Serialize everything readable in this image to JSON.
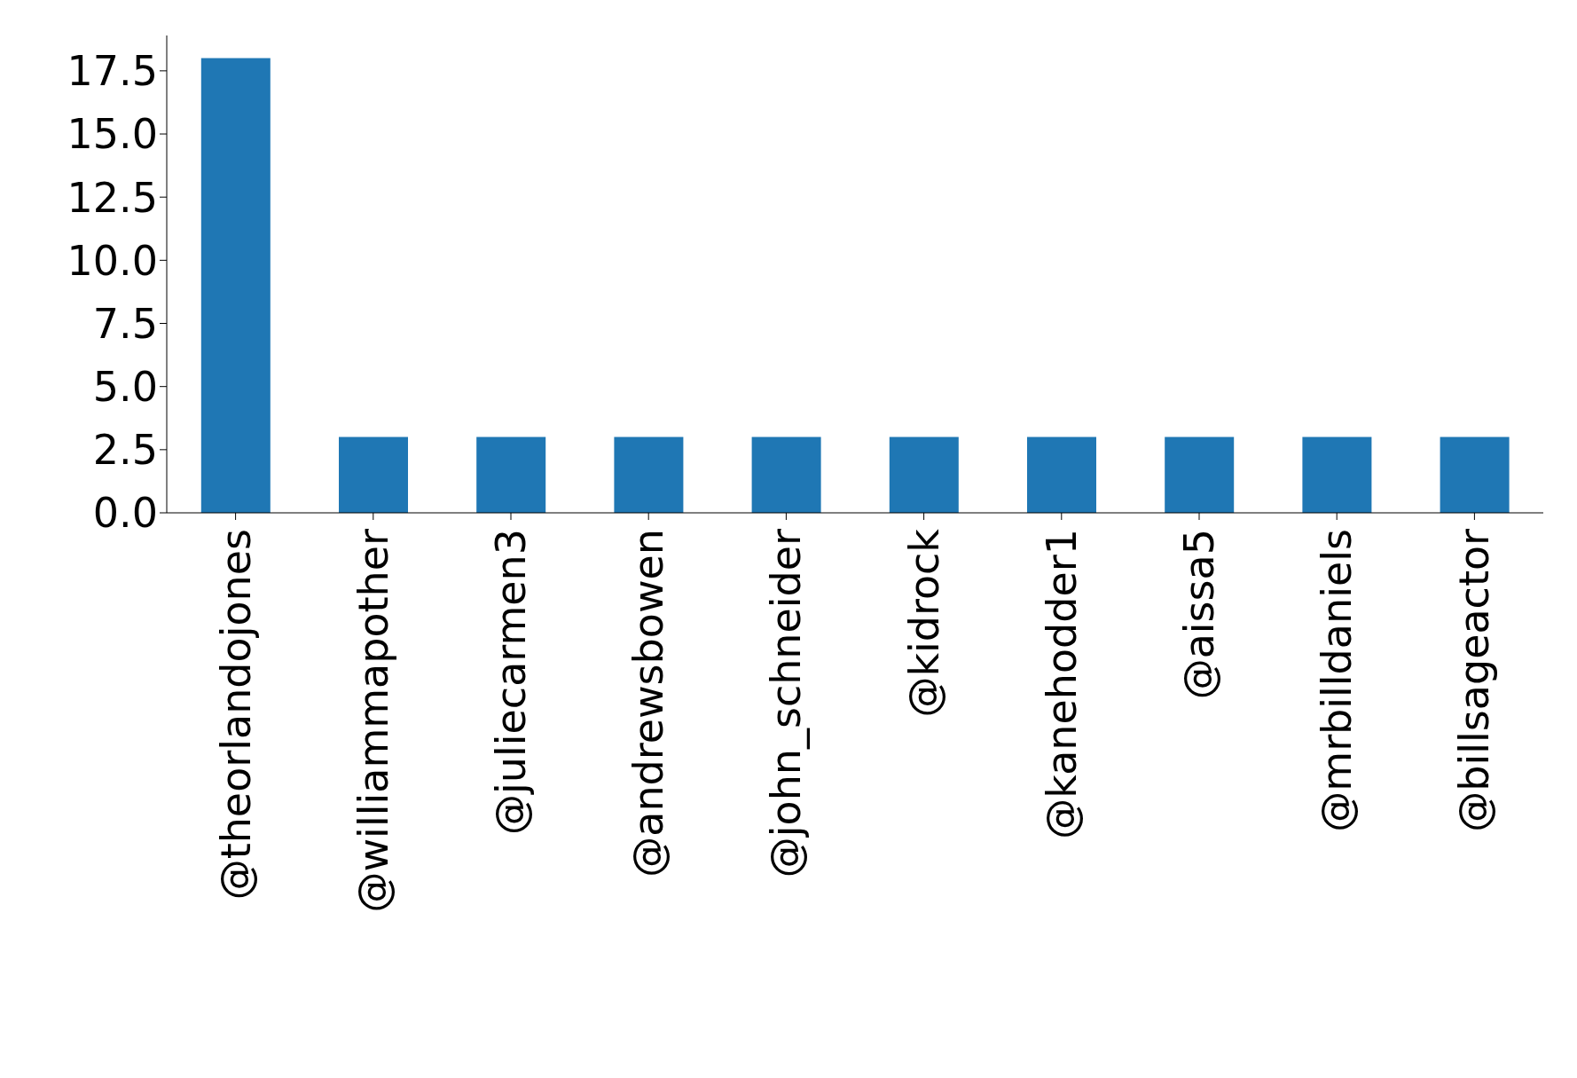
{
  "chart_data": {
    "type": "bar",
    "categories": [
      "@theorlandojones",
      "@williammapother",
      "@juliecarmen3",
      "@andrewsbowen",
      "@john_schneider",
      "@kidrock",
      "@kanehodder1",
      "@aissa5",
      "@mrbilldaniels",
      "@billsageactor"
    ],
    "values": [
      18,
      3,
      3,
      3,
      3,
      3,
      3,
      3,
      3,
      3
    ],
    "color": "#1f77b4",
    "ylim": [
      0,
      18.9
    ],
    "yticks": [
      {
        "value": 0,
        "label": "0.0"
      },
      {
        "value": 2.5,
        "label": "2.5"
      },
      {
        "value": 5,
        "label": "5.0"
      },
      {
        "value": 7.5,
        "label": "7.5"
      },
      {
        "value": 10,
        "label": "10.0"
      },
      {
        "value": 12.5,
        "label": "12.5"
      },
      {
        "value": 15,
        "label": "15.0"
      },
      {
        "value": 17.5,
        "label": "17.5"
      }
    ],
    "grid": false
  }
}
